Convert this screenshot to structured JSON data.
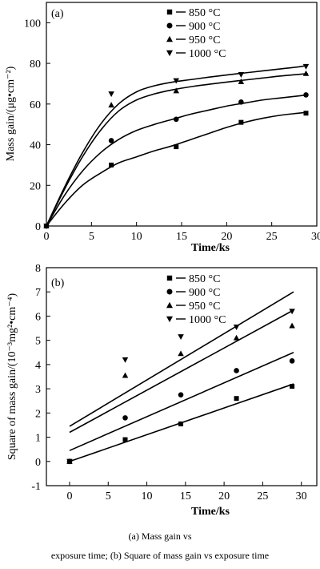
{
  "figure": {
    "caption_line1": "(a) Mass gain vs",
    "caption_line2": "exposure time; (b) Square of mass gain vs exposure time"
  },
  "chart_data": [
    {
      "type": "scatter",
      "panel_label": "(a)",
      "xlabel": "Time/ks",
      "ylabel": "Mass gain/(μg•cm⁻²)",
      "xlim": [
        0,
        30
      ],
      "ylim": [
        0,
        110
      ],
      "xticks": [
        0,
        5,
        10,
        15,
        20,
        25,
        30
      ],
      "yticks": [
        0,
        20,
        40,
        60,
        80,
        100
      ],
      "legend_position": "top-left",
      "series": [
        {
          "name": "850 °C",
          "marker": "square",
          "x": [
            0,
            7.2,
            14.4,
            21.6,
            28.8
          ],
          "y": [
            0,
            30,
            39,
            51,
            55.5
          ],
          "fit_x": [
            0,
            2,
            4,
            6,
            8,
            10,
            12,
            14,
            16,
            18,
            20,
            22,
            24,
            26,
            28,
            29
          ],
          "fit_y": [
            0,
            11,
            20,
            26,
            31,
            34,
            37,
            39.5,
            42.5,
            45.5,
            48.5,
            51,
            53,
            54.5,
            55.5,
            56
          ]
        },
        {
          "name": "900 °C",
          "marker": "circle",
          "x": [
            0,
            7.2,
            14.4,
            21.6,
            28.8
          ],
          "y": [
            0,
            42,
            52.5,
            61,
            64.5
          ],
          "fit_x": [
            0,
            2,
            4,
            6,
            8,
            10,
            12,
            14,
            16,
            18,
            20,
            22,
            24,
            26,
            28,
            29
          ],
          "fit_y": [
            0,
            15,
            27,
            36,
            42.5,
            47,
            50,
            52.5,
            55,
            57,
            59,
            60.5,
            62,
            63,
            64,
            64.5
          ]
        },
        {
          "name": "950 °C",
          "marker": "triangle-up",
          "x": [
            0,
            7.2,
            14.4,
            21.6,
            28.8
          ],
          "y": [
            0,
            59.5,
            66.5,
            71,
            75
          ],
          "fit_x": [
            0,
            2,
            4,
            6,
            8,
            10,
            12,
            14,
            16,
            18,
            20,
            22,
            24,
            26,
            28,
            29
          ],
          "fit_y": [
            0,
            18,
            34,
            47,
            56.5,
            62,
            65,
            67,
            68.5,
            69.7,
            70.8,
            71.8,
            72.8,
            73.8,
            74.6,
            75
          ]
        },
        {
          "name": "1000 °C",
          "marker": "triangle-down",
          "x": [
            0,
            7.2,
            14.4,
            21.6,
            28.8
          ],
          "y": [
            0,
            65,
            71.5,
            74.5,
            78.5
          ],
          "fit_x": [
            0,
            2,
            4,
            6,
            8,
            10,
            12,
            14,
            16,
            18,
            20,
            22,
            24,
            26,
            28,
            29
          ],
          "fit_y": [
            0,
            19,
            36,
            50,
            60,
            66,
            69,
            70.8,
            72,
            73.2,
            74.3,
            75.3,
            76.3,
            77.3,
            78.3,
            79
          ]
        }
      ]
    },
    {
      "type": "scatter",
      "panel_label": "(b)",
      "xlabel": "Time/ks",
      "ylabel": "Square of mass gain/(10⁻³mg²•cm⁻⁴)",
      "xlim": [
        -3,
        32
      ],
      "ylim": [
        -1,
        8
      ],
      "xticks": [
        0,
        5,
        10,
        15,
        20,
        25,
        30
      ],
      "yticks": [
        -1,
        0,
        1,
        2,
        3,
        4,
        5,
        6,
        7,
        8
      ],
      "legend_position": "top-left",
      "series": [
        {
          "name": "850 °C",
          "marker": "square",
          "x": [
            0,
            7.2,
            14.4,
            21.6,
            28.8
          ],
          "y": [
            0,
            0.9,
            1.55,
            2.6,
            3.1
          ],
          "fit_x": [
            0,
            29
          ],
          "fit_y": [
            0,
            3.2
          ]
        },
        {
          "name": "900 °C",
          "marker": "circle",
          "x": [
            0,
            7.2,
            14.4,
            21.6,
            28.8
          ],
          "y": [
            0,
            1.8,
            2.75,
            3.75,
            4.15
          ],
          "fit_x": [
            0,
            29
          ],
          "fit_y": [
            0.45,
            4.5
          ]
        },
        {
          "name": "950 °C",
          "marker": "triangle-up",
          "x": [
            0,
            7.2,
            14.4,
            21.6,
            28.8
          ],
          "y": [
            0,
            3.55,
            4.45,
            5.1,
            5.6
          ],
          "fit_x": [
            0,
            29
          ],
          "fit_y": [
            1.2,
            6.25
          ]
        },
        {
          "name": "1000 °C",
          "marker": "triangle-down",
          "x": [
            0,
            7.2,
            14.4,
            21.6,
            28.8
          ],
          "y": [
            0,
            4.2,
            5.15,
            5.55,
            6.2
          ],
          "fit_x": [
            0,
            29
          ],
          "fit_y": [
            1.45,
            7.0
          ]
        }
      ]
    }
  ]
}
